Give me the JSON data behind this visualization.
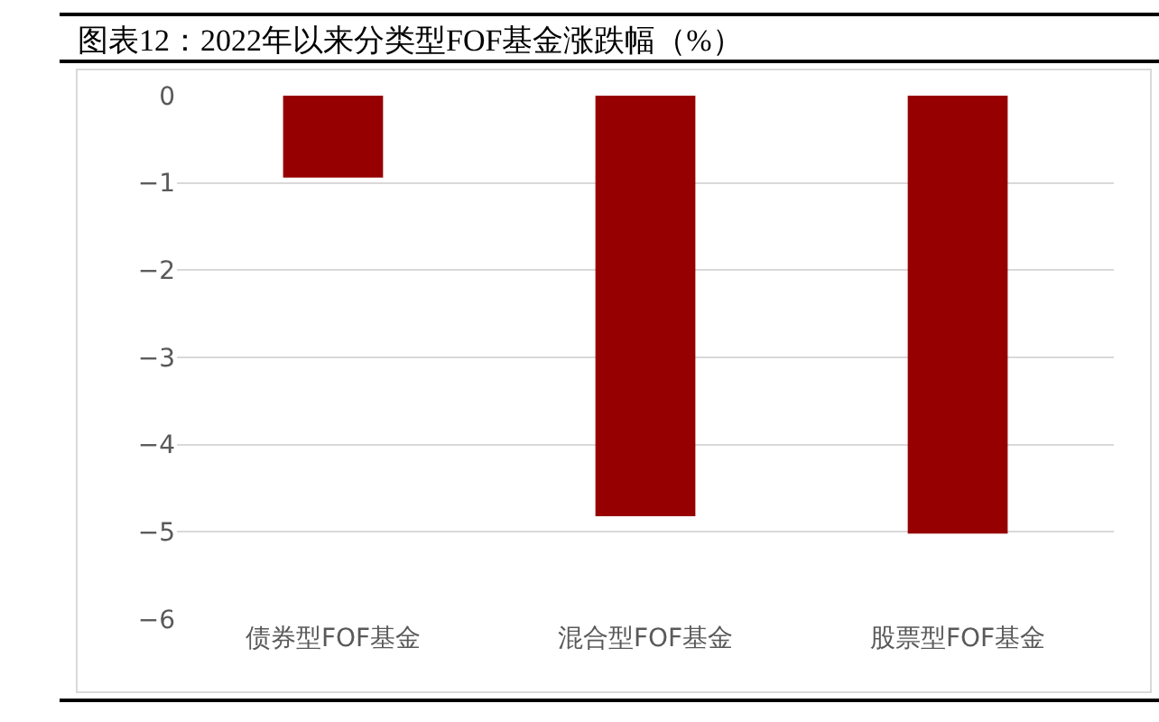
{
  "chart_data": {
    "type": "bar",
    "title": "图表12：2022年以来分类型FOF基金涨跌幅（%）",
    "categories": [
      "债券型FOF基金",
      "混合型FOF基金",
      "股票型FOF基金"
    ],
    "values": [
      -0.94,
      -4.82,
      -5.02
    ],
    "color": "#960000",
    "ylim": [
      -6,
      0
    ],
    "yticks": [
      -6,
      -5,
      -4,
      -3,
      -2,
      -1,
      0
    ],
    "grid": "y"
  }
}
